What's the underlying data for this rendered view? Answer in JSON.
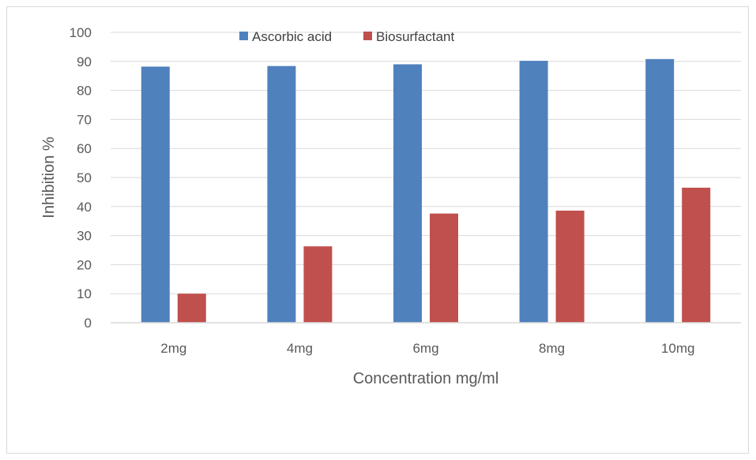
{
  "chart_data": {
    "type": "bar",
    "categories": [
      "2mg",
      "4mg",
      "6mg",
      "8mg",
      "10mg"
    ],
    "series": [
      {
        "name": "Ascorbic acid",
        "color": "#4f81bd",
        "values": [
          88.2,
          88.4,
          89.0,
          90.2,
          90.8
        ]
      },
      {
        "name": "Biosurfactant",
        "color": "#c0504d",
        "values": [
          10.0,
          26.3,
          37.6,
          38.6,
          46.5
        ]
      }
    ],
    "xlabel": "Concentration mg/ml",
    "ylabel": "Inhibition %",
    "ylim": [
      0,
      100
    ],
    "yticks": [
      "0",
      "10",
      "20",
      "30",
      "40",
      "50",
      "60",
      "70",
      "80",
      "90",
      "100"
    ],
    "grid": true,
    "legend_position": "top"
  }
}
